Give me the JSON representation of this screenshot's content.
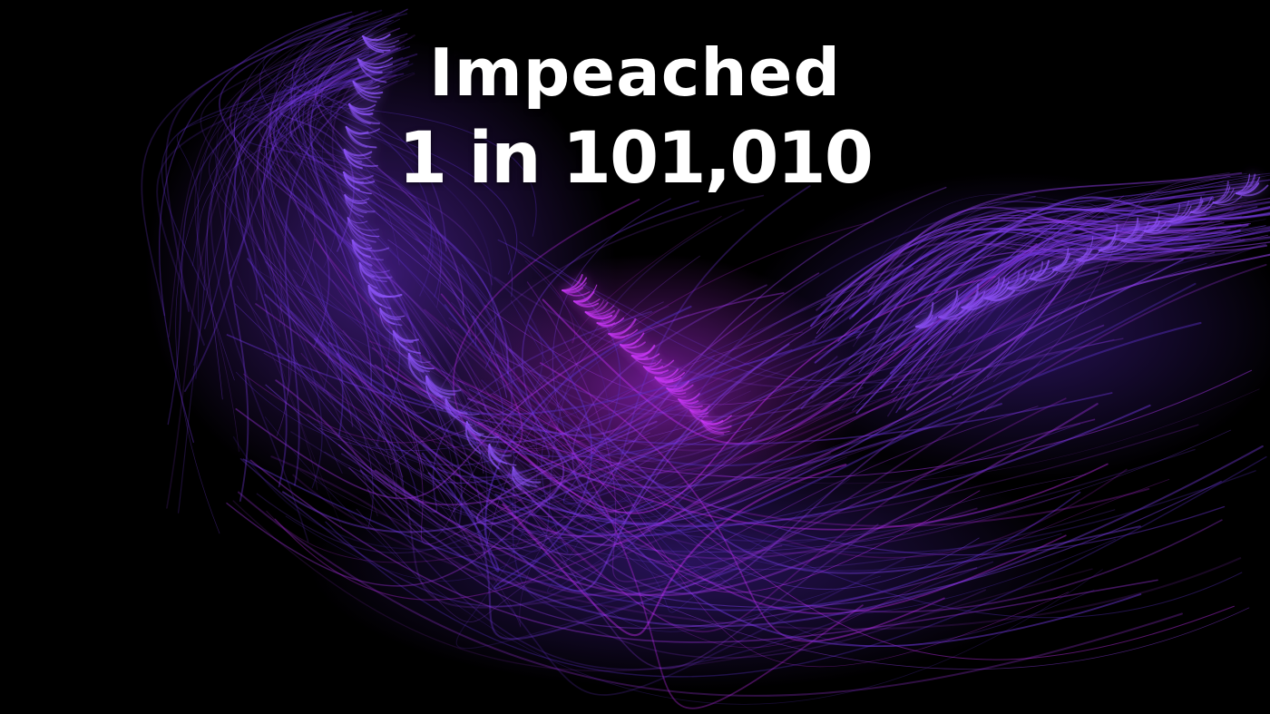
{
  "headline": {
    "title": "Impeached",
    "odds": "1 in 101,010"
  },
  "colors": {
    "background": "#000000",
    "text": "#ffffff",
    "accent_violet": "#7b3fe4",
    "accent_magenta": "#c42cf0"
  },
  "art": {
    "subject": "purple-fractal-wing"
  }
}
